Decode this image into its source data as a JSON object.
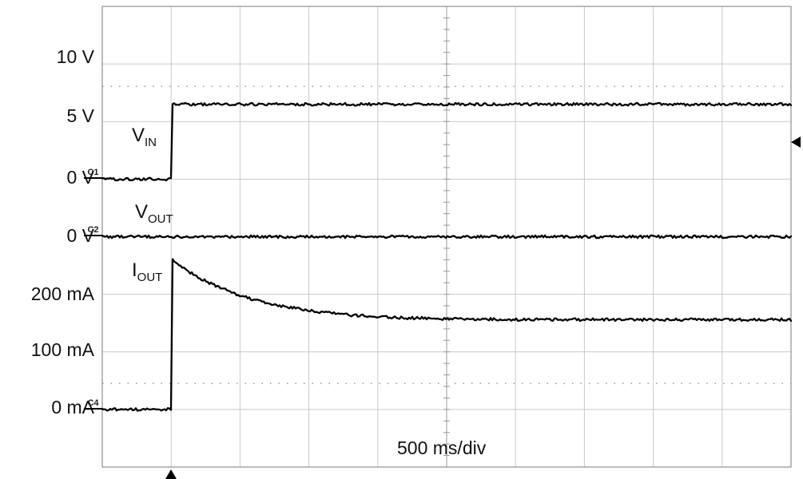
{
  "scope": {
    "timebase": "500 ms/div",
    "y_axis_labels": [
      {
        "text": "10 V"
      },
      {
        "text": "5 V"
      },
      {
        "text": "0 V"
      },
      {
        "text": "0 V"
      },
      {
        "text": "200 mA"
      },
      {
        "text": "100 mA"
      },
      {
        "text": "0 mA"
      }
    ],
    "channel_markers": [
      {
        "text": "C1"
      },
      {
        "text": "C2"
      },
      {
        "text": "C4"
      }
    ],
    "trace_labels": [
      {
        "main": "V",
        "sub": "IN"
      },
      {
        "main": "V",
        "sub": "OUT"
      },
      {
        "main": "I",
        "sub": "OUT"
      }
    ],
    "colors": {
      "trace": "#000000",
      "grid": "#c9c9c9",
      "frame": "#8f8f8f",
      "background": "#ffffff"
    }
  },
  "chart_data": {
    "type": "line",
    "title": "",
    "xlabel": "500 ms/div",
    "x_unit": "s",
    "x_range": [
      0,
      5
    ],
    "divisions": {
      "x": 10,
      "y": 8
    },
    "dotted_reference_lines_div": [
      1.39,
      6.55
    ],
    "series": [
      {
        "name": "V_IN",
        "channel": "C1",
        "unit": "V",
        "scale_per_div": 5,
        "zero_div_from_top": 3,
        "points": [
          [
            0,
            0
          ],
          [
            0.5,
            0
          ],
          [
            0.5,
            6.5
          ],
          [
            5,
            6.5
          ]
        ]
      },
      {
        "name": "V_OUT",
        "channel": "C2",
        "unit": "V",
        "scale_per_div": 5,
        "zero_div_from_top": 4,
        "points": [
          [
            0,
            0
          ],
          [
            5,
            0
          ]
        ]
      },
      {
        "name": "I_OUT",
        "channel": "C4",
        "unit": "mA",
        "scale_per_div": 100,
        "zero_div_from_top": 7,
        "points": [
          [
            0,
            0
          ],
          [
            0.5,
            0
          ],
          [
            0.5,
            262
          ],
          [
            0.55,
            252
          ],
          [
            0.6,
            243
          ],
          [
            0.65,
            236
          ],
          [
            0.7,
            229
          ],
          [
            0.75,
            223
          ],
          [
            0.8,
            217
          ],
          [
            0.9,
            207
          ],
          [
            1.0,
            198
          ],
          [
            1.1,
            191
          ],
          [
            1.2,
            185
          ],
          [
            1.3,
            180
          ],
          [
            1.4,
            176
          ],
          [
            1.5,
            172
          ],
          [
            1.6,
            169
          ],
          [
            1.8,
            164
          ],
          [
            2.0,
            161
          ],
          [
            2.2,
            159
          ],
          [
            2.4,
            158
          ],
          [
            2.7,
            157
          ],
          [
            3.0,
            156
          ],
          [
            3.5,
            156
          ],
          [
            4.0,
            156
          ],
          [
            4.5,
            156
          ],
          [
            5.0,
            156
          ]
        ]
      }
    ],
    "annotations": {
      "trigger_time_s": 0.5,
      "trigger_level": {
        "channel": "C1",
        "approx_value_V": 3.2
      }
    }
  }
}
